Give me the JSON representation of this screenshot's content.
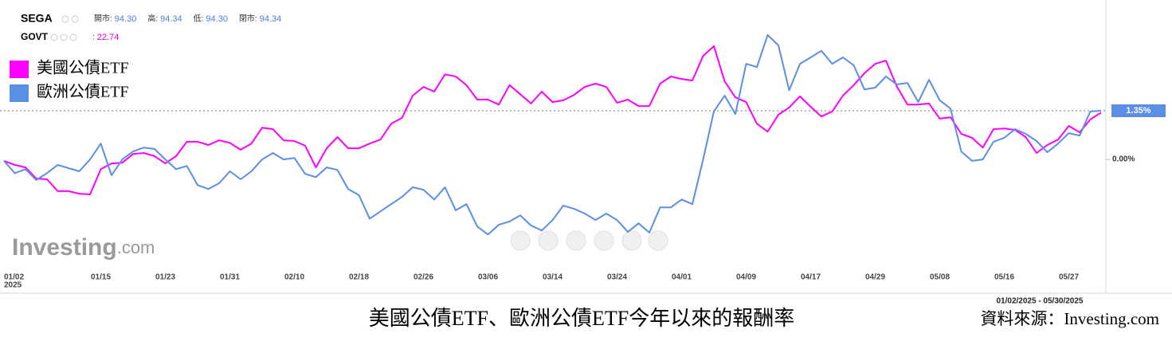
{
  "chart_data": {
    "type": "line",
    "quotes": [
      {
        "symbol": "SEGA",
        "items": [
          {
            "label": "開市:",
            "value": "94.30"
          },
          {
            "label": "高:",
            "value": "94.34"
          },
          {
            "label": "低:",
            "value": "94.30"
          },
          {
            "label": "閉市:",
            "value": "94.34"
          }
        ]
      },
      {
        "symbol": "GOVT",
        "items": [
          {
            "label": ":",
            "value": "22.74"
          }
        ]
      }
    ],
    "logo": {
      "main": "Investing",
      "sub": ".com"
    },
    "caption": "美國公債ETF、歐洲公債ETF今年以來的報酬率",
    "source": "資料來源：Investing.com",
    "date_range": "01/02/2025 - 05/30/2025",
    "year_label": "2025",
    "categories": [
      null,
      "01/02",
      null,
      null,
      null,
      null,
      null,
      null,
      null,
      "01/15",
      null,
      null,
      null,
      null,
      null,
      "01/23",
      null,
      null,
      null,
      null,
      null,
      "01/31",
      null,
      null,
      null,
      null,
      null,
      "02/10",
      null,
      null,
      null,
      null,
      null,
      "02/18",
      null,
      null,
      null,
      null,
      null,
      "02/26",
      null,
      null,
      null,
      null,
      null,
      "03/06",
      null,
      null,
      null,
      null,
      null,
      "03/14",
      null,
      null,
      null,
      null,
      null,
      "03/24",
      null,
      null,
      null,
      null,
      null,
      "04/01",
      null,
      null,
      null,
      null,
      null,
      "04/09",
      null,
      null,
      null,
      null,
      null,
      "04/17",
      null,
      null,
      null,
      null,
      null,
      "04/29",
      null,
      null,
      null,
      null,
      null,
      "05/08",
      null,
      null,
      null,
      null,
      null,
      "05/16",
      null,
      null,
      null,
      null,
      null,
      "05/27",
      null,
      null,
      null
    ],
    "series": [
      {
        "name": "美國公債ETF",
        "color": "#ff00ff",
        "values": [
          -0.04,
          -0.15,
          -0.22,
          -0.53,
          -0.55,
          -0.88,
          -0.88,
          -0.95,
          -0.97,
          -0.27,
          -0.11,
          -0.09,
          0.15,
          0.18,
          0.09,
          -0.11,
          0.09,
          0.49,
          0.49,
          0.4,
          0.53,
          0.46,
          0.27,
          0.44,
          0.88,
          0.84,
          0.53,
          0.51,
          0.38,
          -0.22,
          0.31,
          0.62,
          0.31,
          0.31,
          0.44,
          0.55,
          0.99,
          1.15,
          1.77,
          2.01,
          1.88,
          2.36,
          2.3,
          2.06,
          1.66,
          1.66,
          1.52,
          2.06,
          1.81,
          1.55,
          1.88,
          1.59,
          1.64,
          1.79,
          2.01,
          2.1,
          2.01,
          1.57,
          1.66,
          1.48,
          1.48,
          2.1,
          2.3,
          2.23,
          2.19,
          2.87,
          3.14,
          2.17,
          1.72,
          1.59,
          0.99,
          0.77,
          1.24,
          1.44,
          1.75,
          1.46,
          1.19,
          1.33,
          1.77,
          2.06,
          2.39,
          2.65,
          2.74,
          2.03,
          1.52,
          1.52,
          1.55,
          1.13,
          1.17,
          0.71,
          0.6,
          0.33,
          0.84,
          0.86,
          0.82,
          0.62,
          0.18,
          0.4,
          0.55,
          0.93,
          0.75,
          1.11,
          1.3
        ]
      },
      {
        "name": "歐洲公債ETF",
        "color": "#5b8fe6",
        "values": [
          -0.04,
          -0.38,
          -0.27,
          -0.57,
          -0.38,
          -0.15,
          -0.24,
          -0.33,
          0.0,
          0.44,
          -0.44,
          0.0,
          0.22,
          0.33,
          0.29,
          0.0,
          -0.27,
          -0.18,
          -0.71,
          -0.82,
          -0.66,
          -0.33,
          -0.55,
          -0.33,
          0.0,
          0.18,
          0.0,
          0.04,
          -0.4,
          -0.49,
          -0.22,
          -0.29,
          -0.82,
          -0.99,
          -1.64,
          -1.44,
          -1.24,
          -1.04,
          -0.77,
          -0.84,
          -1.11,
          -0.77,
          -1.41,
          -1.24,
          -1.86,
          -2.08,
          -1.81,
          -1.72,
          -1.55,
          -1.83,
          -1.97,
          -1.68,
          -1.28,
          -1.37,
          -1.5,
          -1.68,
          -1.5,
          -1.68,
          -2.01,
          -1.77,
          -2.03,
          -1.33,
          -1.33,
          -1.11,
          -1.24,
          0.0,
          1.33,
          1.77,
          1.26,
          2.65,
          2.56,
          3.45,
          3.16,
          1.92,
          2.65,
          2.83,
          3.01,
          2.65,
          2.83,
          2.61,
          1.94,
          1.99,
          2.3,
          2.08,
          2.12,
          1.59,
          2.21,
          1.64,
          1.41,
          0.22,
          -0.04,
          0.0,
          0.49,
          0.6,
          0.84,
          0.71,
          0.51,
          0.2,
          0.44,
          0.73,
          0.66,
          1.33,
          1.35
        ]
      }
    ],
    "current": {
      "value": 1.35,
      "label": "1.35%"
    },
    "ylim": [
      -3.09,
      4.42
    ],
    "yticks": [
      {
        "value": 0,
        "label": "0.00%"
      }
    ],
    "grid": false
  }
}
